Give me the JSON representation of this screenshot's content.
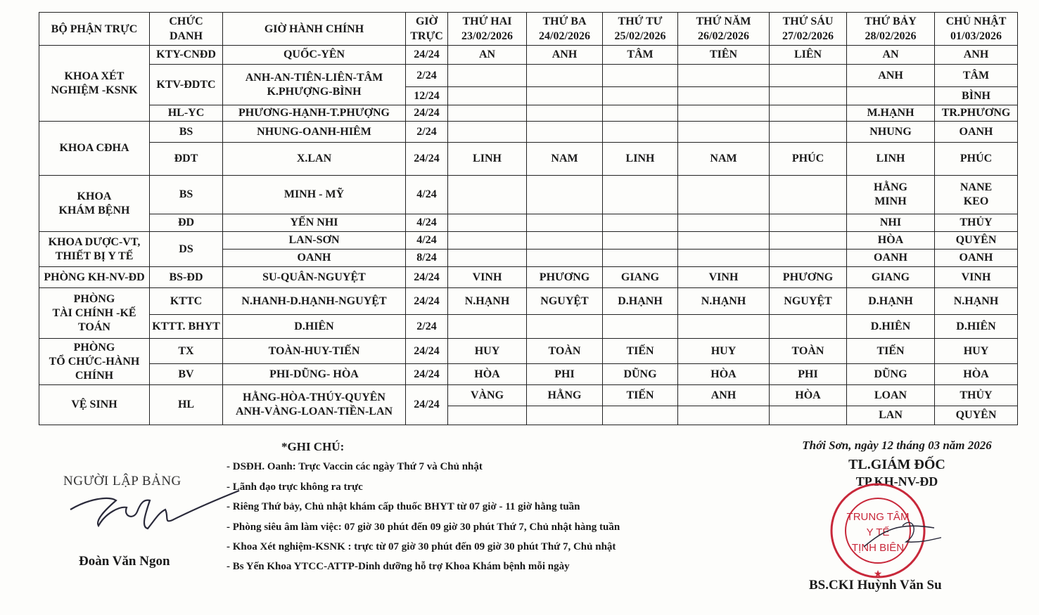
{
  "table": {
    "headers": [
      "BỘ PHẬN TRỰC",
      "CHỨC\nDANH",
      "GIỜ HÀNH CHÍNH",
      "GIỜ\nTRỰC",
      "THỨ HAI\n23/02/2026",
      "THỨ BA\n24/02/2026",
      "THỨ TƯ\n25/02/2026",
      "THỨ NĂM\n26/02/2026",
      "THỨ SÁU\n27/02/2026",
      "THỨ BẢY\n28/02/2026",
      "CHỦ NHẬT\n01/03/2026"
    ],
    "rows": [
      {
        "dept": "KHOA XÉT\nNGHIỆM -KSNK",
        "title": "KTY-CNĐD",
        "staff": "QUỐC-YÊN",
        "hours": "24/24",
        "days": [
          "AN",
          "ANH",
          "TÂM",
          "TIÊN",
          "LIÊN",
          "AN",
          "ANH"
        ]
      },
      {
        "title": "KTV-ĐDTC",
        "staff": "ANH-AN-TIÊN-LIÊN-TÂM\nK.PHƯỢNG-BÌNH",
        "hours": "2/24",
        "days": [
          "",
          "",
          "",
          "",
          "",
          "ANH",
          "TÂM"
        ]
      },
      {
        "hours": "12/24",
        "days": [
          "",
          "",
          "",
          "",
          "",
          "",
          "BÌNH"
        ]
      },
      {
        "title": "HL-YC",
        "staff": "PHƯƠNG-HẠNH-T.PHƯỢNG",
        "hours": "24/24",
        "days": [
          "",
          "",
          "",
          "",
          "",
          "M.HẠNH",
          "TR.PHƯƠNG"
        ]
      },
      {
        "dept": "KHOA CĐHA",
        "title": "BS",
        "staff": "NHUNG-OANH-HIÊM",
        "hours": "2/24",
        "days": [
          "",
          "",
          "",
          "",
          "",
          "NHUNG",
          "OANH"
        ]
      },
      {
        "title": "ĐDT",
        "staff": "X.LAN",
        "hours": "24/24",
        "days": [
          "LINH",
          "NAM",
          "LINH",
          "NAM",
          "PHÚC",
          "LINH",
          "PHÚC"
        ]
      },
      {
        "dept": "KHOA\nKHÁM BỆNH",
        "title": "BS",
        "staff": "MINH - MỸ",
        "hours": "4/24",
        "days": [
          "",
          "",
          "",
          "",
          "",
          "HẰNG\nMINH",
          "NANE\nKEO"
        ]
      },
      {
        "title": "ĐD",
        "staff": "YẾN NHI",
        "hours": "4/24",
        "days": [
          "",
          "",
          "",
          "",
          "",
          "NHI",
          "THỦY"
        ]
      },
      {
        "dept": "KHOA DƯỢC-VT,\nTHIẾT BỊ Y TẾ",
        "title": "DS",
        "staff": "LAN-SƠN",
        "hours": "4/24",
        "days": [
          "",
          "",
          "",
          "",
          "",
          "HÒA",
          "QUYÊN"
        ]
      },
      {
        "staff": "OANH",
        "hours": "8/24",
        "days": [
          "",
          "",
          "",
          "",
          "",
          "OANH",
          "OANH"
        ]
      },
      {
        "dept": "PHÒNG KH-NV-ĐD",
        "title": "BS-ĐD",
        "staff": "SU-QUÂN-NGUYỆT",
        "hours": "24/24",
        "days": [
          "VINH",
          "PHƯƠNG",
          "GIANG",
          "VINH",
          "PHƯƠNG",
          "GIANG",
          "VINH"
        ]
      },
      {
        "dept": "PHÒNG\nTÀI CHÍNH -KẾ\nTOÁN",
        "title": "KTTC",
        "staff": "N.HANH-D.HẠNH-NGUYỆT",
        "hours": "24/24",
        "days": [
          "N.HẠNH",
          "NGUYỆT",
          "D.HẠNH",
          "N.HẠNH",
          "NGUYỆT",
          "D.HẠNH",
          "N.HẠNH"
        ]
      },
      {
        "title": "KTTT. BHYT",
        "staff": "D.HIÊN",
        "hours": "2/24",
        "days": [
          "",
          "",
          "",
          "",
          "",
          "D.HIÊN",
          "D.HIÊN"
        ]
      },
      {
        "dept": "PHÒNG\nTỔ CHỨC-HÀNH\nCHÍNH",
        "title": "TX",
        "staff": "TOÀN-HUY-TIẾN",
        "hours": "24/24",
        "days": [
          "HUY",
          "TOÀN",
          "TIẾN",
          "HUY",
          "TOÀN",
          "TIẾN",
          "HUY"
        ]
      },
      {
        "title": "BV",
        "staff": "PHI-DŨNG- HÒA",
        "hours": "24/24",
        "days": [
          "HÒA",
          "PHI",
          "DŨNG",
          "HÒA",
          "PHI",
          "DŨNG",
          "HÒA"
        ]
      },
      {
        "dept": "VỆ SINH",
        "title": "HL",
        "staff": "HẰNG-HÒA-THÚY-QUYÊN\nANH-VÀNG-LOAN-TIỀN-LAN",
        "hours": "24/24",
        "days": [
          "VÀNG",
          "HẰNG",
          "TIẾN",
          "ANH",
          "HÒA",
          "LOAN",
          "THỦY"
        ]
      },
      {
        "days": [
          "",
          "",
          "",
          "",
          "",
          "LAN",
          "QUYÊN"
        ]
      }
    ]
  },
  "notes": {
    "title": "*GHI CHÚ:",
    "items": [
      "- DSĐH. Oanh: Trực Vaccin các ngày Thứ 7 và Chủ nhật",
      "- Lãnh đạo trực không ra trực",
      "- Riêng Thứ bảy, Chủ nhật khám cấp thuốc BHYT từ 07 giờ - 11 giờ hằng tuần",
      "- Phòng siêu âm làm việc: 07 giờ 30 phút đến 09 giờ 30 phút Thứ 7, Chủ nhật hàng tuần",
      "- Khoa Xét nghiệm-KSNK : trực từ 07 giờ 30 phút đến 09 giờ 30 phút Thứ 7, Chủ nhật",
      "- Bs Yến Khoa YTCC-ATTP-Dinh dưỡng hỗ trợ Khoa Khám bệnh mỗi ngày"
    ]
  },
  "preparer": {
    "role": "NGƯỜI LẬP BẢNG",
    "name": "Đoàn Văn Ngon"
  },
  "approver": {
    "place_date": "Thới Sơn, ngày 12 tháng 03 năm 2026",
    "title": "TL.GIÁM ĐỐC",
    "subtitle": "TP.KH-NV-ĐD",
    "name": "BS.CKI Huỳnh Văn Su"
  },
  "stamp": {
    "text": "TRUNG TÂM Y TẾ TỊNH BIÊN",
    "color": "#c8283a"
  },
  "colors": {
    "ink": "#1a1a1a",
    "signature": "#2a2a3a"
  }
}
